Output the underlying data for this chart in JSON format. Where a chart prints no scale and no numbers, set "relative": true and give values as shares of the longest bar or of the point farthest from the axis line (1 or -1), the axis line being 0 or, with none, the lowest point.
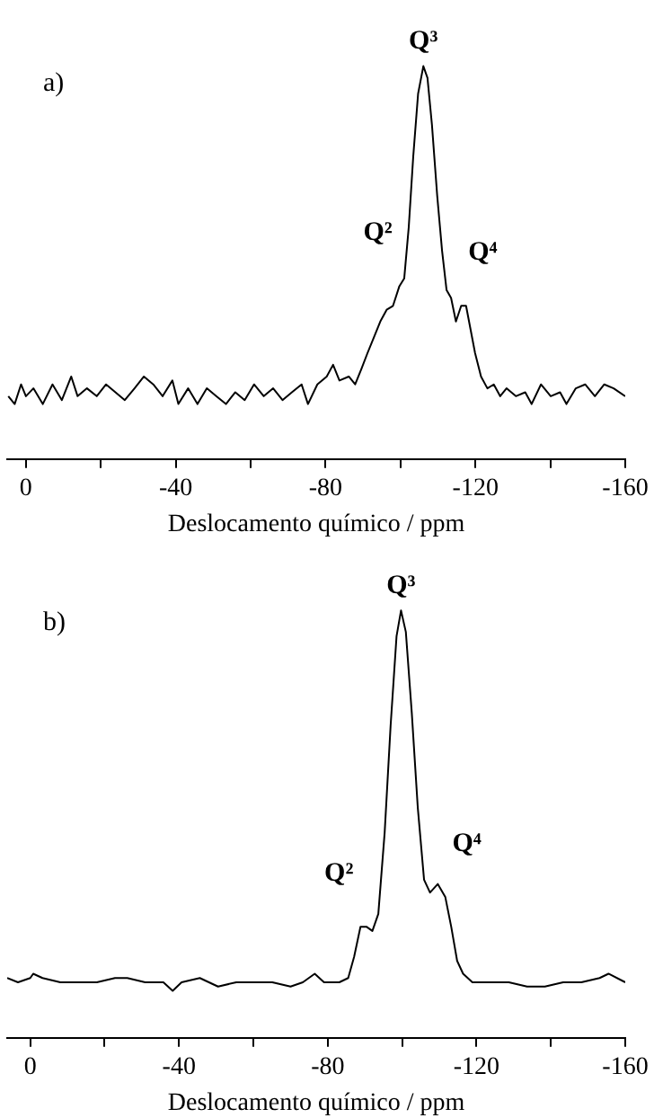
{
  "chart_data": [
    {
      "type": "line",
      "relative": true,
      "xlabel": "Deslocamento químico / ppm",
      "xlim": [
        5,
        -160
      ],
      "xticks": [
        0,
        {
          "value": -20,
          "label": null
        },
        -40,
        {
          "value": -60,
          "label": null
        },
        -80,
        {
          "value": -100,
          "label": null
        },
        -120,
        {
          "value": -140,
          "label": null
        },
        -160
      ],
      "grid": false,
      "legend": false,
      "marker": "none",
      "line_style": "solid",
      "annotations": [
        "a)",
        {
          "text": "Q³",
          "x": -106.1,
          "y": 1
        },
        {
          "text": "Q²",
          "x": -99.7,
          "y": 0.44
        },
        {
          "text": "Q⁴",
          "x": -116.2,
          "y": 0.39
        }
      ],
      "series": [
        {
          "color": "#000000",
          "x": [
            4.7,
            3.0,
            1.3,
            0.0,
            -2.0,
            -4.5,
            -7.1,
            -9.6,
            -12.1,
            -13.8,
            -16.3,
            -18.9,
            -21.4,
            -23.9,
            -26.4,
            -29.0,
            -31.5,
            -34.0,
            -36.5,
            -39.1,
            -40.7,
            -43.3,
            -45.8,
            -48.3,
            -50.8,
            -53.4,
            -55.9,
            -58.4,
            -60.9,
            -63.5,
            -66.0,
            -68.5,
            -71.0,
            -73.6,
            -75.3,
            -77.8,
            -80.3,
            -82.0,
            -83.7,
            -86.2,
            -87.9,
            -89.6,
            -91.2,
            -92.9,
            -94.6,
            -96.3,
            -98.0,
            -99.7,
            -101.0,
            -102.2,
            -103.4,
            -104.7,
            -106.1,
            -107.2,
            -108.4,
            -109.8,
            -111.1,
            -112.3,
            -113.5,
            -114.8,
            -116.2,
            -117.5,
            -118.7,
            -119.9,
            -121.5,
            -123.2,
            -124.9,
            -126.6,
            -128.3,
            -130.8,
            -133.3,
            -135.0,
            -137.5,
            -140.1,
            -142.6,
            -144.3,
            -146.8,
            -149.3,
            -151.9,
            -154.4,
            -156.9,
            -160.0
          ],
          "values": [
            0.16,
            0.14,
            0.19,
            0.16,
            0.18,
            0.14,
            0.19,
            0.15,
            0.21,
            0.16,
            0.18,
            0.16,
            0.19,
            0.17,
            0.15,
            0.18,
            0.21,
            0.19,
            0.16,
            0.2,
            0.14,
            0.18,
            0.14,
            0.18,
            0.16,
            0.14,
            0.17,
            0.15,
            0.19,
            0.16,
            0.18,
            0.15,
            0.17,
            0.19,
            0.14,
            0.19,
            0.21,
            0.24,
            0.2,
            0.21,
            0.19,
            0.23,
            0.27,
            0.31,
            0.35,
            0.38,
            0.39,
            0.44,
            0.46,
            0.59,
            0.77,
            0.93,
            1,
            0.97,
            0.85,
            0.67,
            0.53,
            0.43,
            0.41,
            0.35,
            0.39,
            0.39,
            0.33,
            0.27,
            0.21,
            0.18,
            0.19,
            0.16,
            0.18,
            0.16,
            0.17,
            0.14,
            0.19,
            0.16,
            0.17,
            0.14,
            0.18,
            0.19,
            0.16,
            0.19,
            0.18,
            0.16
          ]
        }
      ]
    },
    {
      "type": "line",
      "relative": true,
      "xlabel": "Deslocamento químico / ppm",
      "xlim": [
        6.2,
        -160
      ],
      "xticks": [
        0,
        {
          "value": -20,
          "label": null
        },
        -40,
        {
          "value": -60,
          "label": null
        },
        -80,
        {
          "value": -100,
          "label": null
        },
        -120,
        {
          "value": -140,
          "label": null
        },
        -160
      ],
      "grid": false,
      "legend": false,
      "marker": "none",
      "line_style": "solid",
      "annotations": [
        "b)",
        {
          "text": "Q³",
          "x": -99.7,
          "y": 1
        },
        {
          "text": "Q²",
          "x": -88.8,
          "y": 0.26
        },
        {
          "text": "Q⁴",
          "x": -111.6,
          "y": 0.33
        }
      ],
      "series": [
        {
          "color": "#000000",
          "x": [
            6.2,
            3.3,
            0.0,
            -0.8,
            -3.3,
            -8.1,
            -13.0,
            -17.9,
            -22.8,
            -26.1,
            -30.9,
            -35.8,
            -38.3,
            -40.7,
            -45.6,
            -50.5,
            -55.4,
            -60.3,
            -65.1,
            -70.0,
            -73.3,
            -76.5,
            -79.0,
            -83.1,
            -85.5,
            -87.1,
            -88.8,
            -90.4,
            -92.0,
            -93.6,
            -95.3,
            -96.9,
            -98.5,
            -99.7,
            -101.0,
            -102.6,
            -104.2,
            -105.9,
            -107.5,
            -109.6,
            -111.6,
            -113.2,
            -114.8,
            -116.4,
            -118.9,
            -123.8,
            -128.7,
            -133.6,
            -138.4,
            -143.3,
            -148.2,
            -153.1,
            -155.5,
            -160.0
          ],
          "values": [
            0.14,
            0.13,
            0.14,
            0.15,
            0.14,
            0.13,
            0.13,
            0.13,
            0.14,
            0.14,
            0.13,
            0.13,
            0.11,
            0.13,
            0.14,
            0.12,
            0.13,
            0.13,
            0.13,
            0.12,
            0.13,
            0.15,
            0.13,
            0.13,
            0.14,
            0.19,
            0.26,
            0.26,
            0.25,
            0.29,
            0.48,
            0.73,
            0.94,
            1,
            0.95,
            0.76,
            0.54,
            0.37,
            0.34,
            0.36,
            0.33,
            0.26,
            0.18,
            0.15,
            0.13,
            0.13,
            0.13,
            0.12,
            0.12,
            0.13,
            0.13,
            0.14,
            0.15,
            0.13
          ]
        }
      ]
    }
  ]
}
